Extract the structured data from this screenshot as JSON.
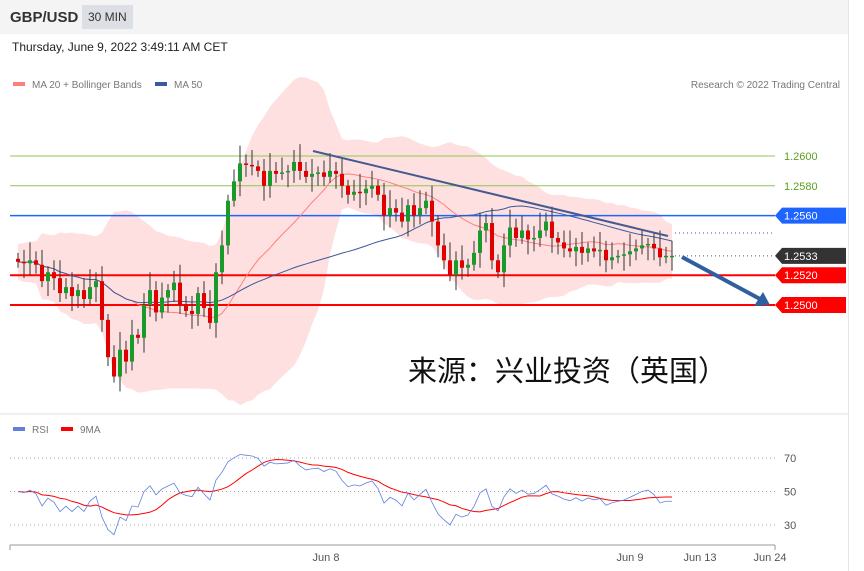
{
  "header": {
    "symbol": "GBP/USD",
    "timeframe": "30 MIN",
    "datetime": "Thursday, June 9, 2022 3:49:11 AM CET"
  },
  "legend": {
    "ma20": "MA 20 + Bollinger Bands",
    "ma50": "MA 50",
    "copyright": "Research © 2022 Trading Central",
    "rsi": "RSI",
    "rsi_ma": "9MA"
  },
  "watermark": "来源：兴业投资（英国）",
  "colors": {
    "up": "#1a9a2a",
    "down": "#e00000",
    "ma20": "#ff7f7f",
    "ma50": "#3a5a9a",
    "band": "#ffe0e0",
    "resistance": "#8cc850",
    "pivot": "#1e64ff",
    "support": "#ff0000",
    "last": "#333333",
    "rsi": "#6080e0",
    "rsi_ma": "#ff0000"
  },
  "chart_data": [
    {
      "type": "candlestick",
      "ylim": [
        1.244,
        1.2625
      ],
      "grid": false,
      "levels": [
        {
          "label": "1.2600",
          "value": 1.26,
          "kind": "resistance"
        },
        {
          "label": "1.2580",
          "value": 1.258,
          "kind": "resistance"
        },
        {
          "label": "1.2560",
          "value": 1.256,
          "kind": "pivot"
        },
        {
          "label": "1.2533",
          "value": 1.2533,
          "kind": "last"
        },
        {
          "label": "1.2520",
          "value": 1.252,
          "kind": "support"
        },
        {
          "label": "1.2500",
          "value": 1.25,
          "kind": "support"
        }
      ],
      "closes": [
        1.2529,
        1.2528,
        1.253,
        1.2527,
        1.2516,
        1.2522,
        1.2518,
        1.2508,
        1.2512,
        1.2506,
        1.251,
        1.2504,
        1.2512,
        1.2516,
        1.249,
        1.2465,
        1.2452,
        1.247,
        1.2462,
        1.248,
        1.2478,
        1.25,
        1.251,
        1.2495,
        1.2505,
        1.251,
        1.2515,
        1.25,
        1.2496,
        1.2494,
        1.2508,
        1.2498,
        1.2488,
        1.2522,
        1.254,
        1.257,
        1.2583,
        1.2595,
        1.2594,
        1.2593,
        1.259,
        1.258,
        1.259,
        1.2588,
        1.2589,
        1.259,
        1.2596,
        1.259,
        1.2586,
        1.2588,
        1.2589,
        1.2586,
        1.259,
        1.2588,
        1.258,
        1.2574,
        1.2576,
        1.2575,
        1.2578,
        1.258,
        1.2574,
        1.256,
        1.2565,
        1.2562,
        1.2556,
        1.2567,
        1.256,
        1.2565,
        1.257,
        1.2556,
        1.254,
        1.253,
        1.252,
        1.253,
        1.2525,
        1.2527,
        1.2535,
        1.255,
        1.2555,
        1.253,
        1.2522,
        1.254,
        1.2552,
        1.2545,
        1.255,
        1.2544,
        1.2545,
        1.255,
        1.2556,
        1.2545,
        1.2542,
        1.2538,
        1.2536,
        1.2539,
        1.2535,
        1.2538,
        1.2536,
        1.2537,
        1.253,
        1.2532,
        1.2533,
        1.2534,
        1.2536,
        1.2538,
        1.254,
        1.2541,
        1.2538,
        1.2532,
        1.2533,
        1.2533
      ],
      "x_ticks": [
        "Jun 8",
        "Jun 9",
        "Jun 13",
        "Jun 24"
      ]
    },
    {
      "type": "line",
      "series": [
        {
          "name": "RSI"
        },
        {
          "name": "9MA"
        }
      ],
      "ylim": [
        15,
        85
      ],
      "y_ticks": [
        "70",
        "50",
        "30"
      ]
    }
  ]
}
